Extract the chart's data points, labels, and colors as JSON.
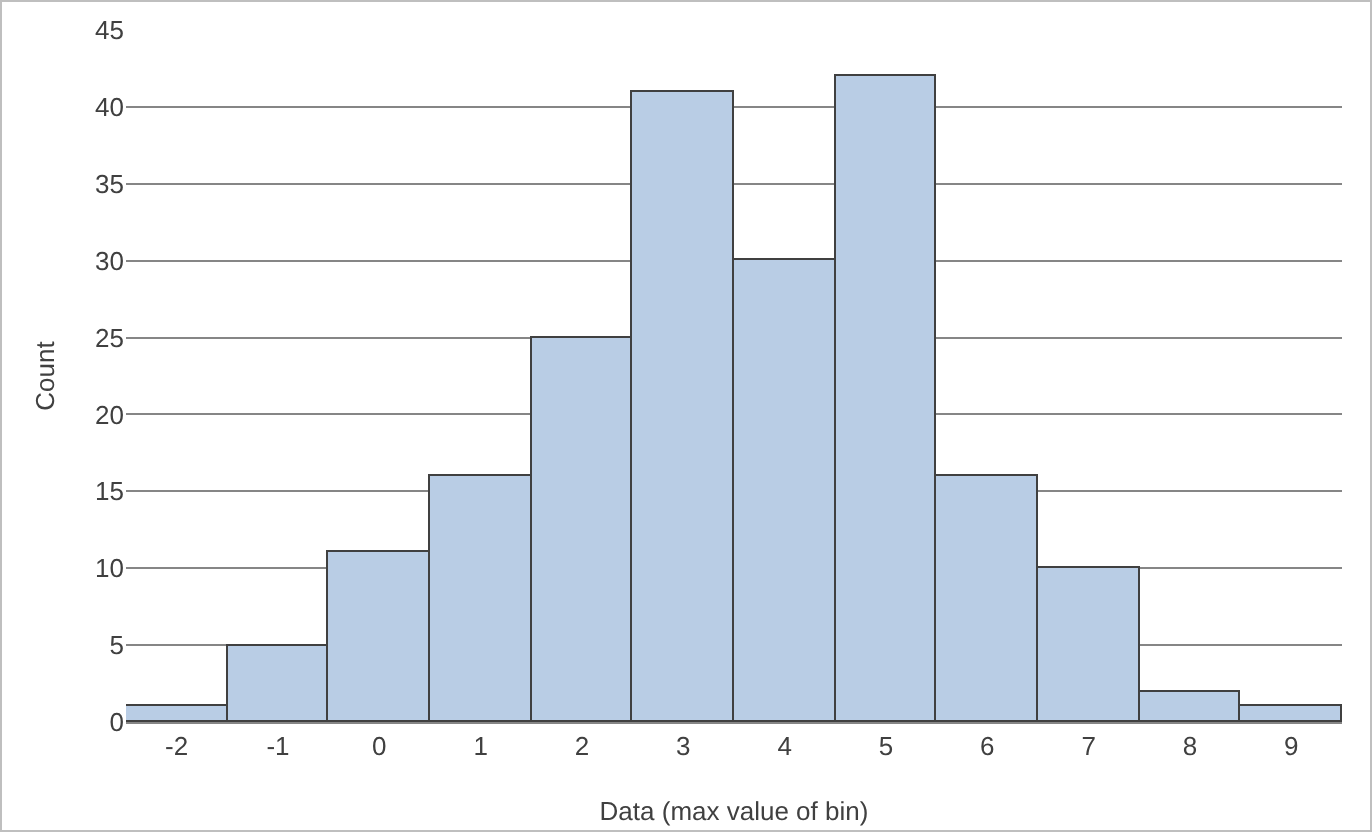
{
  "chart_data": {
    "type": "bar",
    "xlabel": "Data (max value of bin)",
    "ylabel": "Count",
    "categories": [
      "-2",
      "-1",
      "0",
      "1",
      "2",
      "3",
      "4",
      "5",
      "6",
      "7",
      "8",
      "9"
    ],
    "values": [
      1,
      5,
      11,
      16,
      25,
      41,
      30,
      42,
      16,
      10,
      2,
      1
    ],
    "color": "#b9cde5",
    "ylim": [
      0,
      45
    ],
    "yticks": [
      0,
      5,
      10,
      15,
      20,
      25,
      30,
      35,
      40,
      45
    ],
    "grid": "y"
  }
}
